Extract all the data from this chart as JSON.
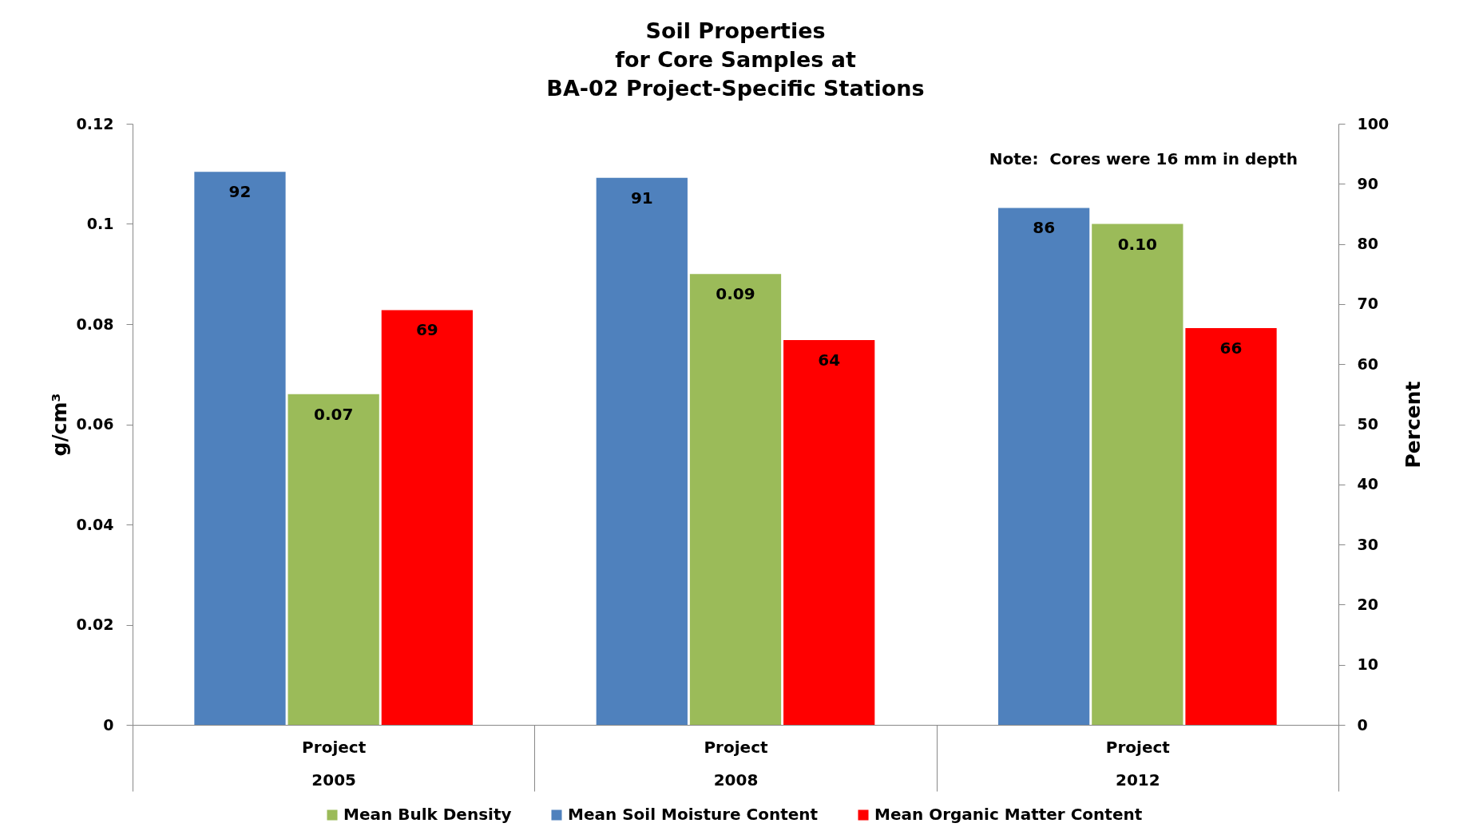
{
  "chart_data": {
    "type": "bar",
    "title": "Soil Properties\nfor Core Samples at\nBA-02 Project-Specific Stations",
    "ylabel": "g/cm³",
    "y2label": "Percent",
    "categories": [
      "Project\n2005",
      "Project\n2008",
      "Project\n2012"
    ],
    "series": [
      {
        "name": "Mean Soil Moisture Content",
        "color": "#4f81bd",
        "axis": "y2",
        "values": [
          92,
          91,
          86
        ],
        "value_labels": [
          "92",
          "91",
          "86"
        ]
      },
      {
        "name": "Mean Bulk Density",
        "color": "#9bbb59",
        "axis": "y",
        "values": [
          0.066,
          0.09,
          0.1
        ],
        "value_labels": [
          "0.07",
          "0.09",
          "0.10"
        ]
      },
      {
        "name": "Mean Organic Matter Content",
        "color": "#ff0000",
        "axis": "y2",
        "values": [
          69,
          64,
          66
        ],
        "value_labels": [
          "69",
          "64",
          "66"
        ]
      }
    ],
    "ylim": [
      0,
      0.12
    ],
    "yticks": [
      0,
      0.02,
      0.04,
      0.06,
      0.08,
      0.1,
      0.12
    ],
    "y2lim": [
      0,
      100
    ],
    "y2ticks": [
      0,
      10,
      20,
      30,
      40,
      50,
      60,
      70,
      80,
      90,
      100
    ],
    "annotations": [
      "Note:  Cores were 16 mm in depth"
    ],
    "legend": "bottom"
  }
}
